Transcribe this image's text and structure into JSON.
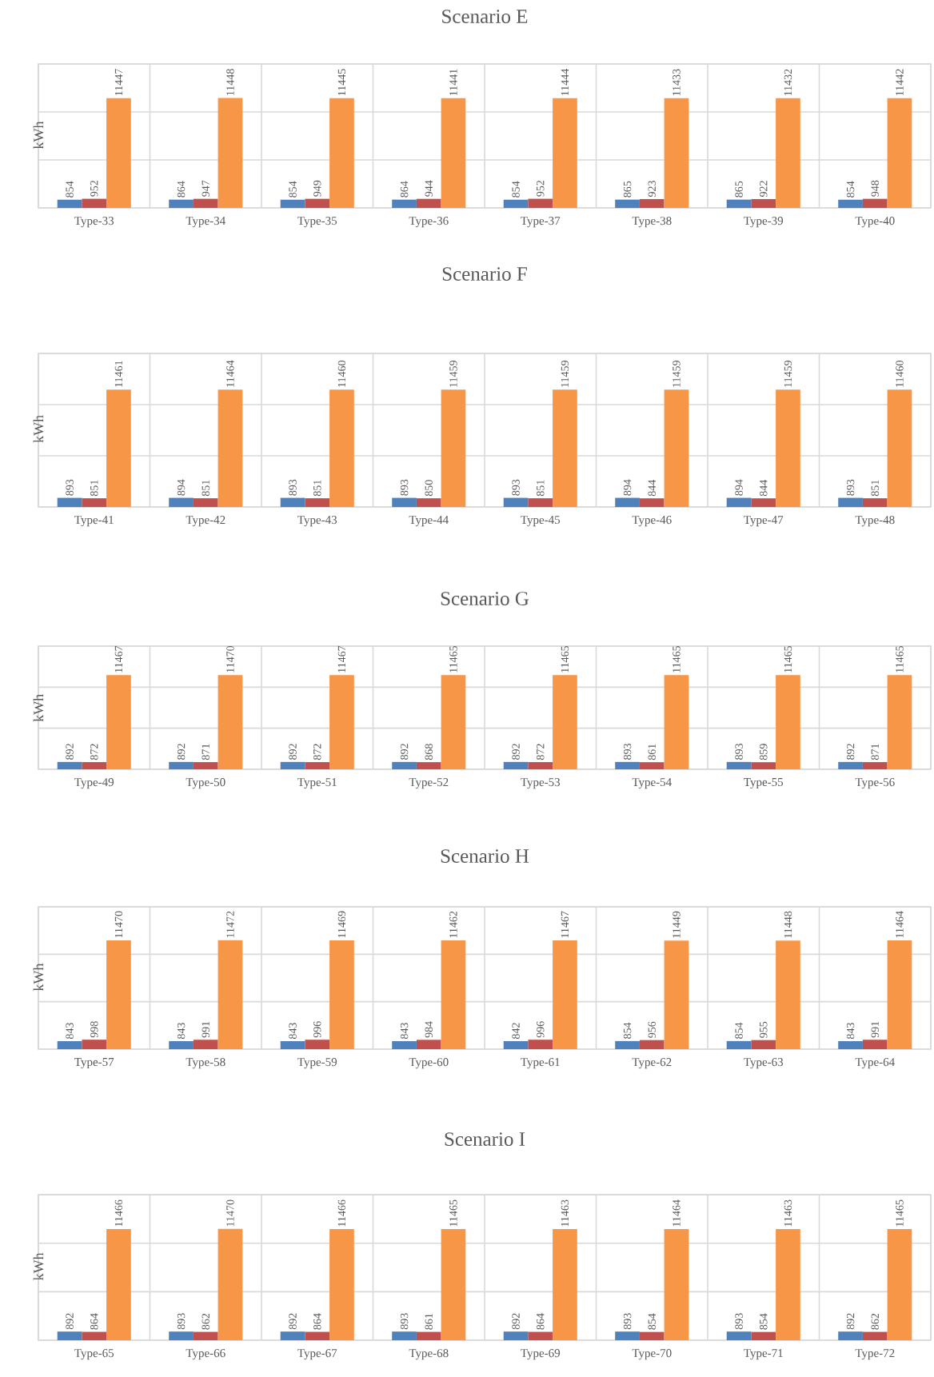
{
  "chart_data": [
    {
      "type": "bar",
      "title": "Scenario E",
      "ylabel": "kWh",
      "categories": [
        "Type-33",
        "Type-34",
        "Type-35",
        "Type-36",
        "Type-37",
        "Type-38",
        "Type-39",
        "Type-40"
      ],
      "series": [
        {
          "color": "#4f81bd",
          "values": [
            854,
            864,
            854,
            864,
            854,
            865,
            865,
            854
          ]
        },
        {
          "color": "#c0504d",
          "values": [
            952,
            947,
            949,
            944,
            952,
            923,
            922,
            948
          ]
        },
        {
          "color": "#f79646",
          "values": [
            11447,
            11448,
            11445,
            11441,
            11444,
            11433,
            11432,
            11442
          ]
        }
      ],
      "data_labels": true,
      "ylim": [
        0,
        15000
      ],
      "yticks": [
        {
          "value": 0,
          "label": null
        },
        {
          "value": 5000,
          "label": null
        },
        {
          "value": 10000,
          "label": null
        },
        {
          "value": 15000,
          "label": null
        }
      ],
      "grid": "y"
    },
    {
      "type": "bar",
      "title": "Scenario F",
      "ylabel": "kWh",
      "categories": [
        "Type-41",
        "Type-42",
        "Type-43",
        "Type-44",
        "Type-45",
        "Type-46",
        "Type-47",
        "Type-48"
      ],
      "series": [
        {
          "color": "#4f81bd",
          "values": [
            893,
            894,
            893,
            893,
            893,
            894,
            894,
            893
          ]
        },
        {
          "color": "#c0504d",
          "values": [
            851,
            851,
            851,
            850,
            851,
            844,
            844,
            851
          ]
        },
        {
          "color": "#f79646",
          "values": [
            11461,
            11464,
            11460,
            11459,
            11459,
            11459,
            11459,
            11460
          ]
        }
      ],
      "data_labels": true,
      "ylim": [
        0,
        15000
      ],
      "yticks": [
        {
          "value": 0,
          "label": null
        },
        {
          "value": 5000,
          "label": null
        },
        {
          "value": 10000,
          "label": null
        },
        {
          "value": 15000,
          "label": null
        }
      ],
      "grid": "y"
    },
    {
      "type": "bar",
      "title": "Scenario G",
      "ylabel": "kWh",
      "categories": [
        "Type-49",
        "Type-50",
        "Type-51",
        "Type-52",
        "Type-53",
        "Type-54",
        "Type-55",
        "Type-56"
      ],
      "series": [
        {
          "color": "#4f81bd",
          "values": [
            892,
            892,
            892,
            892,
            892,
            893,
            893,
            892
          ]
        },
        {
          "color": "#c0504d",
          "values": [
            872,
            871,
            872,
            868,
            872,
            861,
            859,
            871
          ]
        },
        {
          "color": "#f79646",
          "values": [
            11467,
            11470,
            11467,
            11465,
            11465,
            11465,
            11465,
            11465
          ]
        }
      ],
      "data_labels": true,
      "ylim": [
        0,
        15000
      ],
      "yticks": [
        {
          "value": 0,
          "label": null
        },
        {
          "value": 5000,
          "label": null
        },
        {
          "value": 10000,
          "label": null
        },
        {
          "value": 15000,
          "label": null
        }
      ],
      "grid": "y"
    },
    {
      "type": "bar",
      "title": "Scenario H",
      "ylabel": "kWh",
      "categories": [
        "Type-57",
        "Type-58",
        "Type-59",
        "Type-60",
        "Type-61",
        "Type-62",
        "Type-63",
        "Type-64"
      ],
      "series": [
        {
          "color": "#4f81bd",
          "values": [
            843,
            843,
            843,
            843,
            842,
            854,
            854,
            843
          ]
        },
        {
          "color": "#c0504d",
          "values": [
            998,
            991,
            996,
            984,
            996,
            956,
            955,
            991
          ]
        },
        {
          "color": "#f79646",
          "values": [
            11470,
            11472,
            11469,
            11462,
            11467,
            11449,
            11448,
            11464
          ]
        }
      ],
      "data_labels": true,
      "ylim": [
        0,
        15000
      ],
      "yticks": [
        {
          "value": 0,
          "label": null
        },
        {
          "value": 5000,
          "label": null
        },
        {
          "value": 10000,
          "label": null
        },
        {
          "value": 15000,
          "label": null
        }
      ],
      "grid": "y"
    },
    {
      "type": "bar",
      "title": "Scenario I",
      "ylabel": "kWh",
      "categories": [
        "Type-65",
        "Type-66",
        "Type-67",
        "Type-68",
        "Type-69",
        "Type-70",
        "Type-71",
        "Type-72"
      ],
      "series": [
        {
          "color": "#4f81bd",
          "values": [
            892,
            893,
            892,
            893,
            892,
            893,
            893,
            892
          ]
        },
        {
          "color": "#c0504d",
          "values": [
            864,
            862,
            864,
            861,
            864,
            854,
            854,
            862
          ]
        },
        {
          "color": "#f79646",
          "values": [
            11466,
            11470,
            11466,
            11465,
            11463,
            11464,
            11463,
            11465
          ]
        }
      ],
      "data_labels": true,
      "ylim": [
        0,
        15000
      ],
      "yticks": [
        {
          "value": 0,
          "label": null
        },
        {
          "value": 5000,
          "label": null
        },
        {
          "value": 10000,
          "label": null
        },
        {
          "value": 15000,
          "label": null
        }
      ],
      "grid": "y"
    }
  ]
}
